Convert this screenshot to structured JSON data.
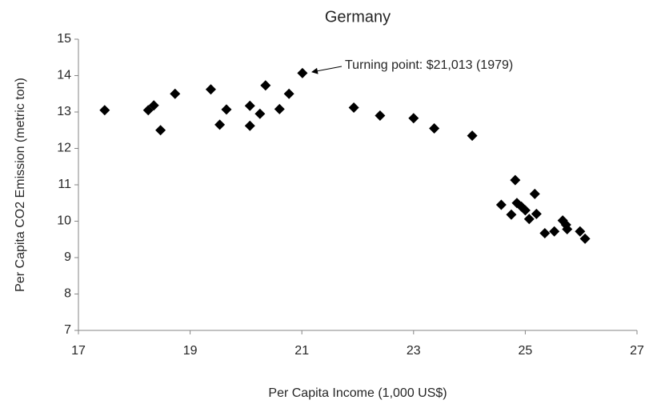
{
  "chart_data": {
    "type": "scatter",
    "title": "Germany",
    "x_label": "Per Capita Income (1,000 US$)",
    "y_label": "Per Capita CO2 Emission (metric ton)",
    "annotation": "Turning point: $21,013 (1979)",
    "series": [
      {
        "name": "Germany",
        "color": "#000000",
        "x": [
          17.47,
          18.25,
          18.35,
          18.47,
          18.73,
          19.37,
          19.53,
          19.65,
          20.07,
          20.07,
          20.25,
          20.35,
          20.6,
          20.77,
          21.01,
          21.93,
          22.4,
          23.0,
          23.37,
          24.05,
          24.57,
          24.75,
          24.82,
          24.85,
          24.93,
          25.0,
          25.07,
          25.17,
          25.2,
          25.35,
          25.52,
          25.67,
          25.73,
          25.75,
          25.98,
          26.07
        ],
        "values": [
          13.05,
          13.05,
          13.18,
          12.5,
          13.5,
          13.62,
          12.65,
          13.07,
          13.17,
          12.62,
          12.95,
          13.73,
          13.08,
          13.5,
          14.07,
          13.12,
          12.9,
          12.83,
          12.55,
          12.35,
          10.45,
          10.18,
          11.13,
          10.5,
          10.4,
          10.3,
          10.06,
          10.75,
          10.2,
          9.67,
          9.72,
          10.02,
          9.9,
          9.78,
          9.72,
          9.52
        ]
      }
    ],
    "xlim": [
      17,
      27
    ],
    "xticks": [
      17,
      19,
      21,
      23,
      25,
      27
    ],
    "ylim": [
      7,
      15
    ],
    "yticks": [
      7,
      8,
      9,
      10,
      11,
      12,
      13,
      14,
      15
    ],
    "grid": false
  }
}
